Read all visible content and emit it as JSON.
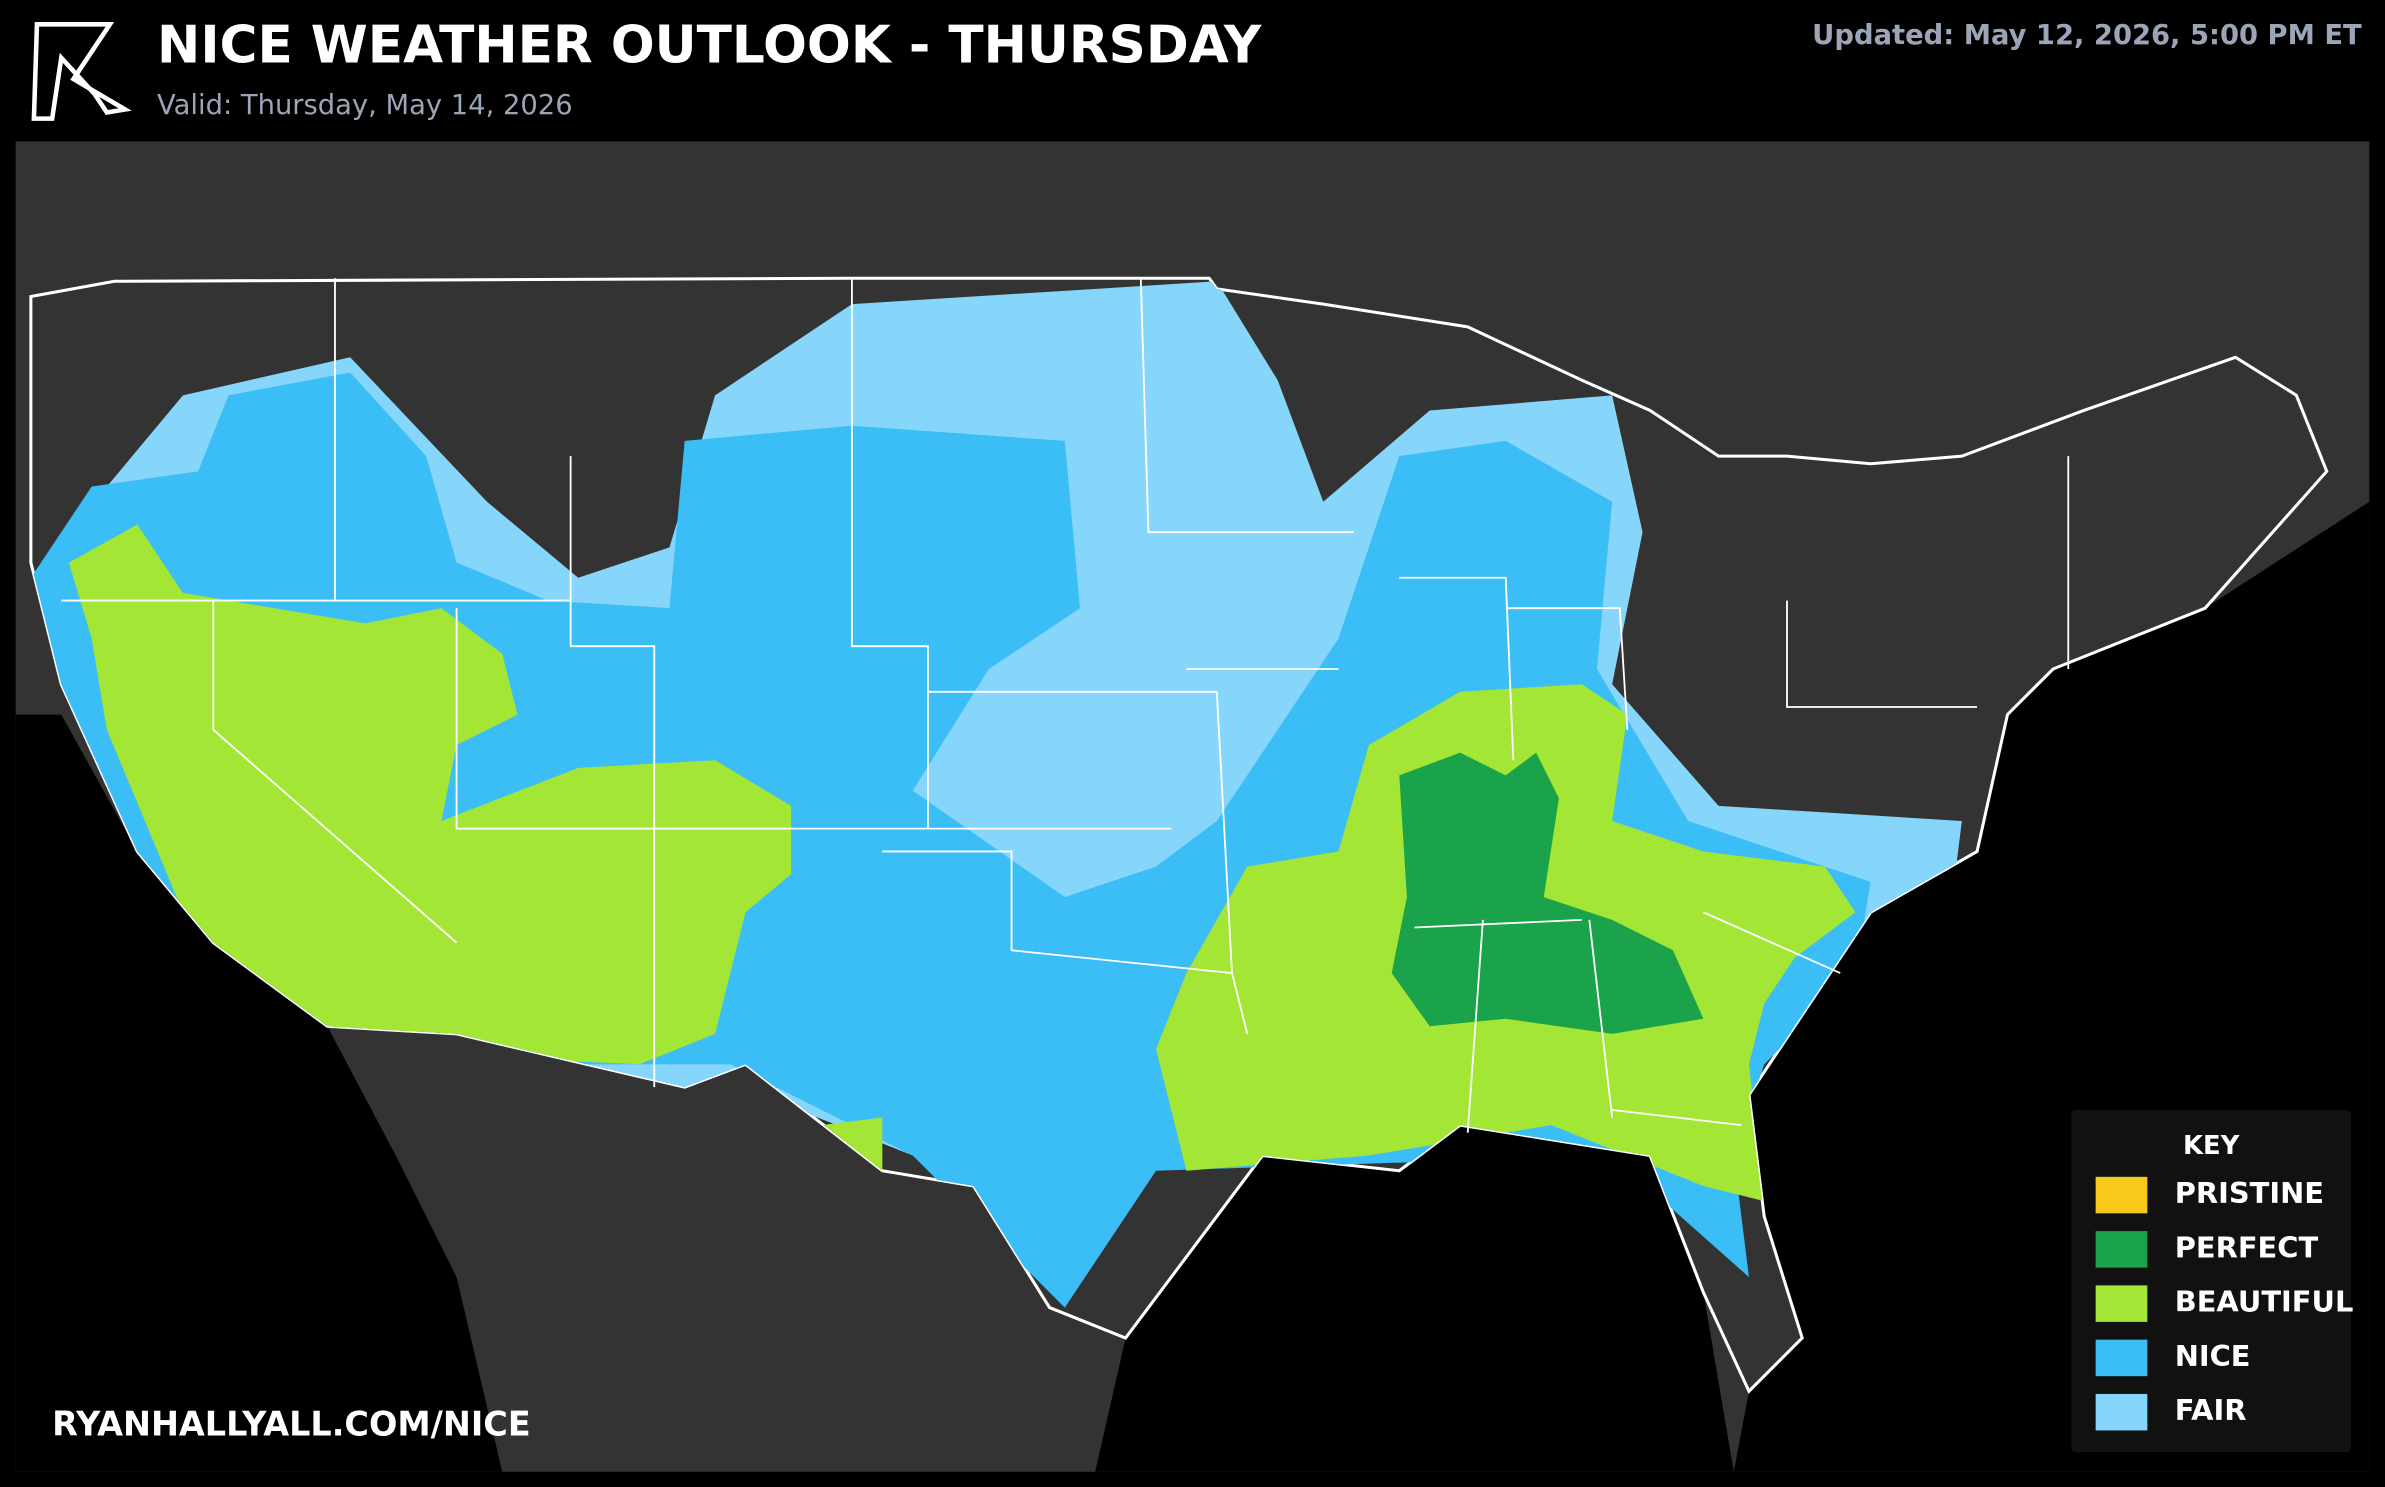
{
  "header": {
    "title": "NICE WEATHER OUTLOOK - THURSDAY",
    "valid": "Valid: Thursday, May 14, 2026",
    "updated": "Updated: May 12, 2026, 5:00 PM ET"
  },
  "key": {
    "title": "KEY",
    "items": [
      {
        "label": "PRISTINE",
        "color": "#f8c91a"
      },
      {
        "label": "PERFECT",
        "color": "#1ba34b"
      },
      {
        "label": "BEAUTIFUL",
        "color": "#a3e635"
      },
      {
        "label": "NICE",
        "color": "#3bbdf6"
      },
      {
        "label": "FAIR",
        "color": "#86d5fb"
      }
    ]
  },
  "footer": {
    "url": "RYANHALLYALL.COM/NICE"
  }
}
